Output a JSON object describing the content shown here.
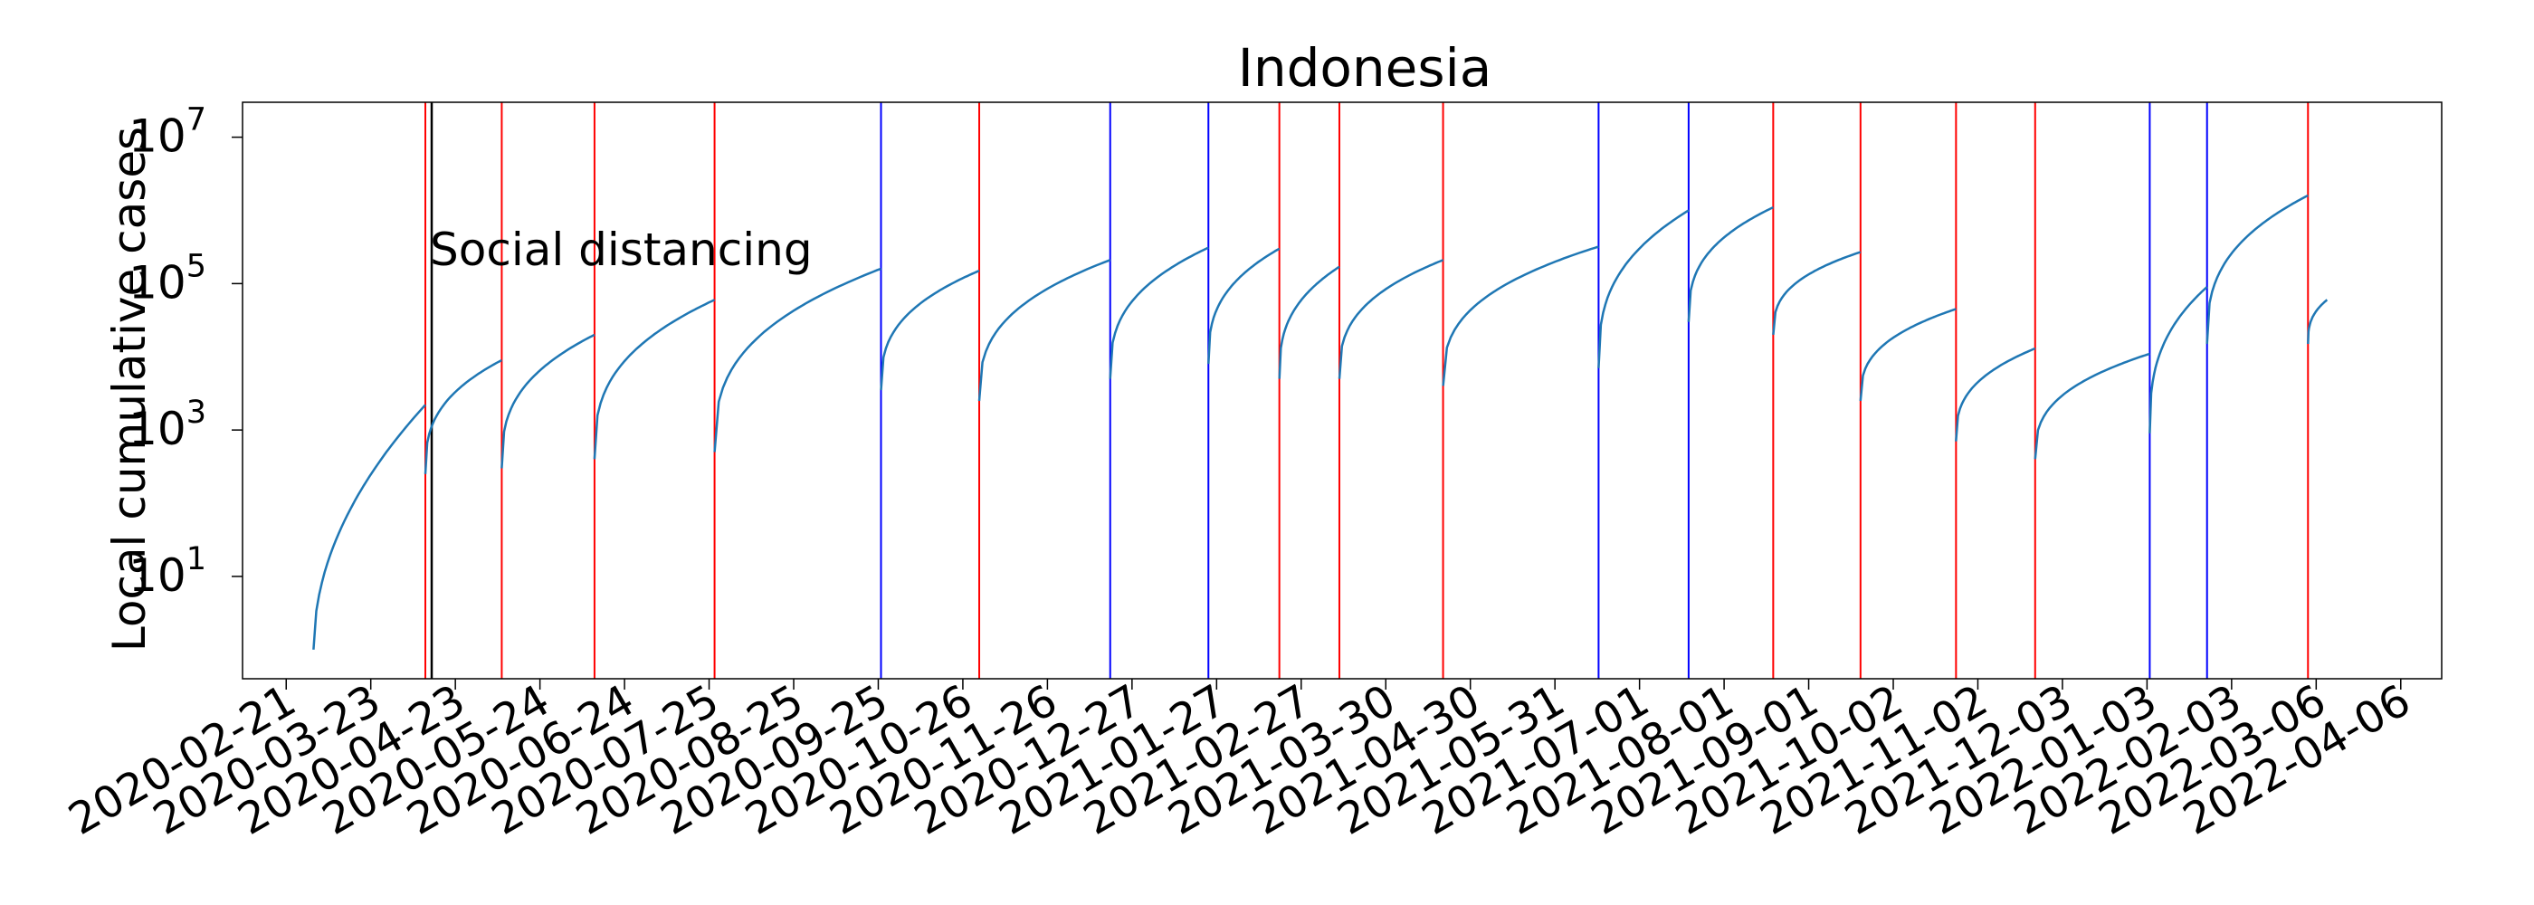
{
  "chart_data": {
    "type": "line",
    "title": "Indonesia",
    "xlabel": "",
    "ylabel": "Local cumulative cases",
    "yscale": "log",
    "xlim": [
      "2020-02-05",
      "2022-04-21"
    ],
    "ylim": [
      0.4,
      30000000
    ],
    "y_ticks": [
      {
        "value": 10,
        "label": "10",
        "exp": "1"
      },
      {
        "value": 1000,
        "label": "10",
        "exp": "3"
      },
      {
        "value": 100000,
        "label": "10",
        "exp": "5"
      },
      {
        "value": 10000000,
        "label": "10",
        "exp": "7"
      }
    ],
    "x_ticks": [
      "2020-02-21",
      "2020-03-23",
      "2020-04-23",
      "2020-05-24",
      "2020-06-24",
      "2020-07-25",
      "2020-08-25",
      "2020-09-25",
      "2020-10-26",
      "2020-11-26",
      "2020-12-27",
      "2021-01-27",
      "2021-02-27",
      "2021-03-30",
      "2021-04-30",
      "2021-05-31",
      "2021-07-01",
      "2021-08-01",
      "2021-09-01",
      "2021-10-02",
      "2021-11-02",
      "2021-12-03",
      "2022-01-03",
      "2022-02-03",
      "2022-03-06",
      "2022-04-06"
    ],
    "annotation": {
      "text": "Social distancing",
      "x": "2020-04-13",
      "y": 300000
    },
    "intervention_line": {
      "x": "2020-04-13",
      "color": "#000000"
    },
    "segment_lines": [
      {
        "x": "2020-04-12",
        "color": "#ff0000"
      },
      {
        "x": "2020-05-10",
        "color": "#ff0000"
      },
      {
        "x": "2020-06-13",
        "color": "#ff0000"
      },
      {
        "x": "2020-07-27",
        "color": "#ff0000"
      },
      {
        "x": "2020-09-26",
        "color": "#0000ff"
      },
      {
        "x": "2020-11-01",
        "color": "#ff0000"
      },
      {
        "x": "2020-12-19",
        "color": "#0000ff"
      },
      {
        "x": "2021-01-24",
        "color": "#0000ff"
      },
      {
        "x": "2021-02-19",
        "color": "#ff0000"
      },
      {
        "x": "2021-03-13",
        "color": "#ff0000"
      },
      {
        "x": "2021-04-20",
        "color": "#ff0000"
      },
      {
        "x": "2021-06-16",
        "color": "#0000ff"
      },
      {
        "x": "2021-07-19",
        "color": "#0000ff"
      },
      {
        "x": "2021-08-19",
        "color": "#ff0000"
      },
      {
        "x": "2021-09-20",
        "color": "#ff0000"
      },
      {
        "x": "2021-10-25",
        "color": "#ff0000"
      },
      {
        "x": "2021-11-23",
        "color": "#ff0000"
      },
      {
        "x": "2022-01-04",
        "color": "#0000ff"
      },
      {
        "x": "2022-01-25",
        "color": "#0000ff"
      },
      {
        "x": "2022-03-03",
        "color": "#ff0000"
      }
    ],
    "series": [
      {
        "color": "#1f77b4",
        "segments": [
          {
            "start": "2020-03-02",
            "end": "2020-04-12",
            "y0": 1,
            "y1": 2200
          },
          {
            "start": "2020-04-12",
            "end": "2020-05-10",
            "y0": 250,
            "y1": 9000
          },
          {
            "start": "2020-05-10",
            "end": "2020-06-13",
            "y0": 300,
            "y1": 20000
          },
          {
            "start": "2020-06-13",
            "end": "2020-07-27",
            "y0": 400,
            "y1": 60000
          },
          {
            "start": "2020-07-27",
            "end": "2020-09-26",
            "y0": 500,
            "y1": 160000
          },
          {
            "start": "2020-09-26",
            "end": "2020-11-01",
            "y0": 3500,
            "y1": 150000
          },
          {
            "start": "2020-11-01",
            "end": "2020-12-19",
            "y0": 2500,
            "y1": 210000
          },
          {
            "start": "2020-12-19",
            "end": "2021-01-24",
            "y0": 5000,
            "y1": 310000
          },
          {
            "start": "2021-01-24",
            "end": "2021-02-19",
            "y0": 8000,
            "y1": 300000
          },
          {
            "start": "2021-02-19",
            "end": "2021-03-13",
            "y0": 5000,
            "y1": 170000
          },
          {
            "start": "2021-03-13",
            "end": "2021-04-20",
            "y0": 5000,
            "y1": 210000
          },
          {
            "start": "2021-04-20",
            "end": "2021-06-16",
            "y0": 4000,
            "y1": 320000
          },
          {
            "start": "2021-06-16",
            "end": "2021-07-19",
            "y0": 7000,
            "y1": 1000000
          },
          {
            "start": "2021-07-19",
            "end": "2021-08-19",
            "y0": 30000,
            "y1": 1100000
          },
          {
            "start": "2021-08-19",
            "end": "2021-09-20",
            "y0": 20000,
            "y1": 270000
          },
          {
            "start": "2021-09-20",
            "end": "2021-10-25",
            "y0": 2500,
            "y1": 45000
          },
          {
            "start": "2021-10-25",
            "end": "2021-11-23",
            "y0": 700,
            "y1": 13000
          },
          {
            "start": "2021-11-23",
            "end": "2022-01-04",
            "y0": 400,
            "y1": 11000
          },
          {
            "start": "2022-01-04",
            "end": "2022-01-25",
            "y0": 900,
            "y1": 90000
          },
          {
            "start": "2022-01-25",
            "end": "2022-03-03",
            "y0": 15000,
            "y1": 1600000
          },
          {
            "start": "2022-03-03",
            "end": "2022-03-10",
            "y0": 15000,
            "y1": 60000
          }
        ]
      }
    ]
  }
}
